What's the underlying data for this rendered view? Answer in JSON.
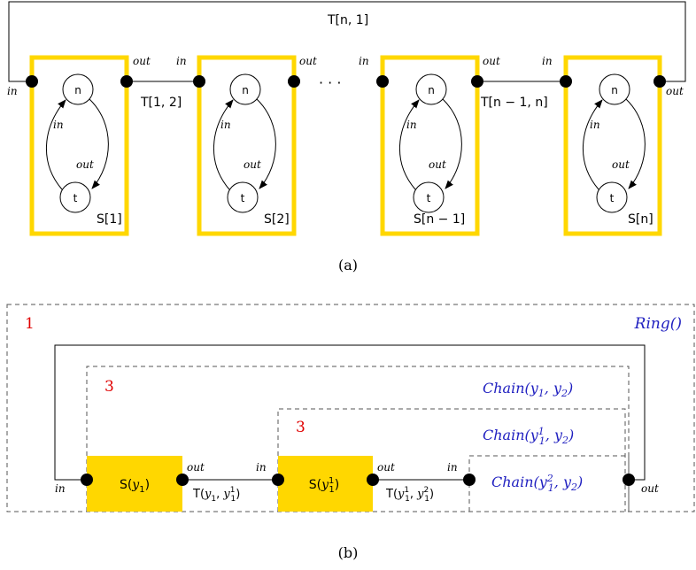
{
  "colors": {
    "yellow": "#FFD700",
    "line": "#000000",
    "blue": "#2020C0",
    "red": "#E00000",
    "dashed": "#555555"
  },
  "part_a": {
    "caption": "(a)",
    "top_link_label": "T[n, 1]",
    "ellipsis": "· · ·",
    "states": {
      "n": "n",
      "t": "t"
    },
    "transition_labels": {
      "in": "in",
      "out": "out"
    },
    "port_labels": {
      "in": "in",
      "out": "out"
    },
    "modules": [
      {
        "label": "S[1]"
      },
      {
        "label": "S[2]"
      },
      {
        "label": "S[n − 1]"
      },
      {
        "label": "S[n]"
      }
    ],
    "links": [
      {
        "label": "T[1, 2]"
      },
      {
        "label": "T[n − 1, n]"
      }
    ]
  },
  "part_b": {
    "caption": "(b)",
    "ring": {
      "label": "Ring()",
      "number": "1"
    },
    "chain_outer": {
      "label": "Chain(y1, y2)",
      "number": "3"
    },
    "chain_inner": {
      "label": "Chain(y11, y2)",
      "number": "3"
    },
    "chain_last": {
      "label": "Chain(y12, y2)"
    },
    "blocks": [
      {
        "label": "S(y1)"
      },
      {
        "label": "S(y11)"
      }
    ],
    "links": [
      {
        "label": "T(y1, y11)"
      },
      {
        "label": "T(y11, y12)"
      }
    ],
    "port_labels": {
      "in": "in",
      "out": "out"
    }
  }
}
